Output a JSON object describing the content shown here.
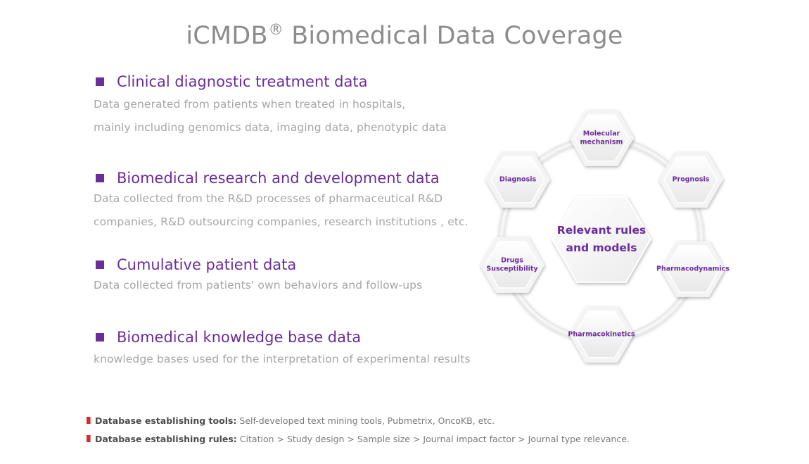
{
  "title": {
    "main": "iCMDB",
    "registered": "®",
    "rest": " Biomedical Data Coverage"
  },
  "sections": [
    {
      "heading": "Clinical diagnostic treatment data",
      "lines": [
        "Data generated from patients when treated in hospitals,",
        "mainly including genomics data, imaging data, phenotypic data"
      ]
    },
    {
      "heading": "Biomedical research and development data",
      "lines": [
        "Data collected from the R&D processes of pharmaceutical R&D",
        "companies, R&D outsourcing companies, research institutions , etc."
      ]
    },
    {
      "heading": "Cumulative patient data",
      "lines": [
        "Data collected from patients' own behaviors and follow-ups"
      ]
    },
    {
      "heading": "Biomedical knowledge base data",
      "lines": [
        "knowledge bases used for the interpretation of experimental results"
      ]
    }
  ],
  "diagram": {
    "center_lines": [
      "Relevant rules",
      "and models"
    ],
    "nodes": [
      {
        "id": "molecular",
        "lines": [
          "Molecular",
          "mechanism"
        ]
      },
      {
        "id": "prognosis",
        "lines": [
          "Prognosis"
        ]
      },
      {
        "id": "pharmacodynamics",
        "lines": [
          "Pharmacodynamics"
        ]
      },
      {
        "id": "pharmacokinetics",
        "lines": [
          "Pharmacokinetics"
        ]
      },
      {
        "id": "drugs",
        "lines": [
          "Drugs",
          "Susceptibility"
        ]
      },
      {
        "id": "diagnosis",
        "lines": [
          "Diagnosis"
        ]
      }
    ],
    "colors": {
      "text": "#6b2c9c",
      "ring": "#e6e6e6",
      "hex_fill": "#f7f7f7"
    }
  },
  "footnotes": [
    {
      "label": "Database establishing tools:",
      "text": "Self-developed text mining tools, Pubmetrix, OncoKB, etc."
    },
    {
      "label": "Database establishing rules:",
      "text": "Citation > Study design > Sample size > Journal impact factor > Journal type relevance."
    }
  ],
  "colors": {
    "accent": "#6b2c9c",
    "title_gray": "#8c8c8c",
    "desc_gray": "#a6a6a6",
    "footnote_marker": "#d62b2b"
  }
}
